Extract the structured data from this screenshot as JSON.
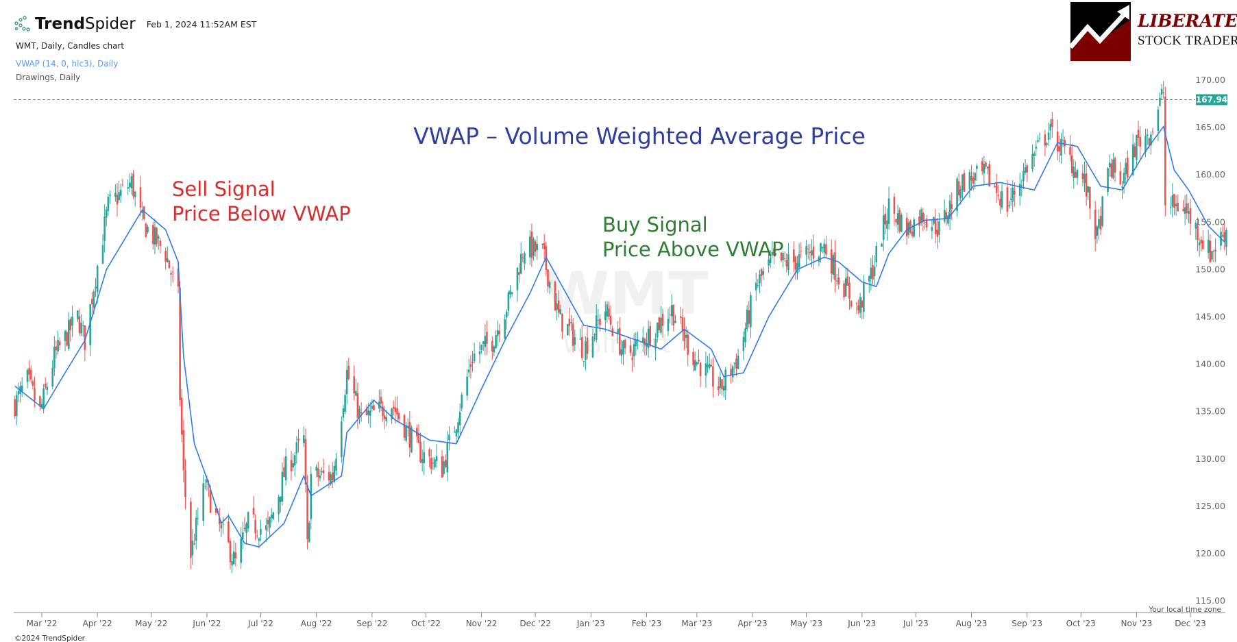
{
  "header": {
    "brand_bold": "Trend",
    "brand_light": "Spider",
    "timestamp": "Feb 1, 2024 11:52AM EST",
    "legend": [
      "WMT, Daily, Candles chart",
      "VWAP (14, 0, hlc3), Daily",
      "Drawings, Daily"
    ],
    "legend_colors": [
      "#222222",
      "#5b9bf0",
      "#555555"
    ]
  },
  "logo": {
    "line1": "LIBERATED",
    "line2": "STOCK TRADER"
  },
  "watermark": {
    "symbol": "WMT",
    "company": "Walmart"
  },
  "footer": {
    "copyright": "©2024 TrendSpider",
    "timezone_note": "Your local time zone"
  },
  "chart_data": {
    "type": "candlestick",
    "title": "VWAP – Volume Weighted Average Price",
    "annotations": [
      {
        "lines": [
          "Sell Signal",
          "Price Below VWAP"
        ],
        "color": "#d32f2f"
      },
      {
        "lines": [
          "Buy Signal",
          "Price Above VWAP"
        ],
        "color": "#2e7d32"
      }
    ],
    "last_price": "167.94",
    "last_price_value": 167.94,
    "ylim": [
      115,
      170
    ],
    "y_ticks": [
      "170.00",
      "165.00",
      "160.00",
      "155.00",
      "150.00",
      "145.00",
      "140.00",
      "135.00",
      "130.00",
      "125.00",
      "120.00",
      "115.00"
    ],
    "x_ticks": [
      {
        "date": "2022-03-01",
        "label": "Mar '22"
      },
      {
        "date": "2022-04-01",
        "label": "Apr '22"
      },
      {
        "date": "2022-05-01",
        "label": "May '22"
      },
      {
        "date": "2022-06-01",
        "label": "Jun '22"
      },
      {
        "date": "2022-07-01",
        "label": "Jul '22"
      },
      {
        "date": "2022-08-01",
        "label": "Aug '22"
      },
      {
        "date": "2022-09-01",
        "label": "Sep '22"
      },
      {
        "date": "2022-10-01",
        "label": "Oct '22"
      },
      {
        "date": "2022-11-01",
        "label": "Nov '22"
      },
      {
        "date": "2022-12-01",
        "label": "Dec '22"
      },
      {
        "date": "2023-01-01",
        "label": "Jan '23"
      },
      {
        "date": "2023-02-01",
        "label": "Feb '23"
      },
      {
        "date": "2023-03-01",
        "label": "Mar '23"
      },
      {
        "date": "2023-04-01",
        "label": "Apr '23"
      },
      {
        "date": "2023-05-01",
        "label": "May '23"
      },
      {
        "date": "2023-06-01",
        "label": "Jun '23"
      },
      {
        "date": "2023-07-01",
        "label": "Jul '23"
      },
      {
        "date": "2023-08-01",
        "label": "Aug '23"
      },
      {
        "date": "2023-09-01",
        "label": "Sep '23"
      },
      {
        "date": "2023-10-01",
        "label": "Oct '23"
      },
      {
        "date": "2023-11-01",
        "label": "Nov '23"
      },
      {
        "date": "2023-12-01",
        "label": "Dec '23"
      }
    ],
    "colors": {
      "up": "#26a69a",
      "down": "#ef5350",
      "vwap": "#2f7be8",
      "last_price_badge": "#26a69a"
    },
    "series": [
      {
        "name": "WMT",
        "kind": "close_approx",
        "points": [
          [
            "2022-02-14",
            135.8
          ],
          [
            "2022-02-21",
            138.3
          ],
          [
            "2022-02-28",
            134.9
          ],
          [
            "2022-03-08",
            140.8
          ],
          [
            "2022-03-21",
            145
          ],
          [
            "2022-03-25",
            142.5
          ],
          [
            "2022-03-30",
            148.3
          ],
          [
            "2022-04-07",
            156.7
          ],
          [
            "2022-04-20",
            159.2
          ],
          [
            "2022-04-26",
            155
          ],
          [
            "2022-05-09",
            151.7
          ],
          [
            "2022-05-16",
            147
          ],
          [
            "2022-05-17",
            136.6
          ],
          [
            "2022-05-19",
            128.2
          ],
          [
            "2022-05-23",
            119.9
          ],
          [
            "2022-05-31",
            127.4
          ],
          [
            "2022-06-07",
            123.2
          ],
          [
            "2022-06-17",
            119
          ],
          [
            "2022-06-24",
            123.2
          ],
          [
            "2022-07-05",
            122.4
          ],
          [
            "2022-07-15",
            129
          ],
          [
            "2022-07-25",
            132
          ],
          [
            "2022-07-27",
            120.7
          ],
          [
            "2022-07-29",
            128.2
          ],
          [
            "2022-08-10",
            128.2
          ],
          [
            "2022-08-18",
            139.1
          ],
          [
            "2022-08-26",
            134.1
          ],
          [
            "2022-09-12",
            135.8
          ],
          [
            "2022-09-27",
            130.8
          ],
          [
            "2022-10-10",
            129
          ],
          [
            "2022-10-18",
            134.1
          ],
          [
            "2022-10-27",
            140.8
          ],
          [
            "2022-11-07",
            142.5
          ],
          [
            "2022-11-16",
            146.6
          ],
          [
            "2022-11-25",
            152.5
          ],
          [
            "2022-12-05",
            151.7
          ],
          [
            "2022-12-14",
            145
          ],
          [
            "2022-12-28",
            141.6
          ],
          [
            "2023-01-09",
            145.8
          ],
          [
            "2023-01-20",
            140.8
          ],
          [
            "2023-02-03",
            143.3
          ],
          [
            "2023-02-15",
            145.8
          ],
          [
            "2023-02-27",
            140.8
          ],
          [
            "2023-03-14",
            137.4
          ],
          [
            "2023-03-24",
            140.8
          ],
          [
            "2023-04-03",
            148.3
          ],
          [
            "2023-04-12",
            150.8
          ],
          [
            "2023-04-24",
            150.8
          ],
          [
            "2023-05-11",
            152.5
          ],
          [
            "2023-05-19",
            149.2
          ],
          [
            "2023-05-30",
            145.8
          ],
          [
            "2023-06-07",
            150
          ],
          [
            "2023-06-16",
            156.7
          ],
          [
            "2023-06-26",
            154.2
          ],
          [
            "2023-07-05",
            155.9
          ],
          [
            "2023-07-14",
            154.2
          ],
          [
            "2023-07-26",
            159.2
          ],
          [
            "2023-08-09",
            160
          ],
          [
            "2023-08-21",
            156.7
          ],
          [
            "2023-09-01",
            160.9
          ],
          [
            "2023-09-13",
            164.6
          ],
          [
            "2023-09-22",
            162.5
          ],
          [
            "2023-10-03",
            159.2
          ],
          [
            "2023-10-10",
            153.3
          ],
          [
            "2023-10-17",
            160.9
          ],
          [
            "2023-10-24",
            159.2
          ],
          [
            "2023-11-01",
            163.4
          ],
          [
            "2023-11-09",
            164.6
          ],
          [
            "2023-11-16",
            168.8
          ],
          [
            "2023-11-17",
            156.7
          ],
          [
            "2023-11-27",
            156.7
          ],
          [
            "2023-12-12",
            151.7
          ],
          [
            "2023-12-21",
            154.2
          ]
        ]
      },
      {
        "name": "VWAP (14, 0, hlc3)",
        "kind": "line",
        "points": [
          [
            "2022-02-14",
            137.7
          ],
          [
            "2022-03-02",
            135.3
          ],
          [
            "2022-03-14",
            139.1
          ],
          [
            "2022-03-25",
            142.5
          ],
          [
            "2022-04-06",
            150
          ],
          [
            "2022-04-26",
            156.3
          ],
          [
            "2022-05-09",
            154.2
          ],
          [
            "2022-05-16",
            150.8
          ],
          [
            "2022-05-19",
            140.8
          ],
          [
            "2022-05-25",
            131.6
          ],
          [
            "2022-06-02",
            127.4
          ],
          [
            "2022-06-09",
            123.2
          ],
          [
            "2022-06-13",
            124
          ],
          [
            "2022-06-22",
            121.1
          ],
          [
            "2022-06-30",
            120.7
          ],
          [
            "2022-07-14",
            123.2
          ],
          [
            "2022-07-25",
            128.2
          ],
          [
            "2022-07-29",
            126.1
          ],
          [
            "2022-08-15",
            128.2
          ],
          [
            "2022-08-18",
            132.8
          ],
          [
            "2022-09-02",
            136.2
          ],
          [
            "2022-09-14",
            134.1
          ],
          [
            "2022-10-03",
            132
          ],
          [
            "2022-10-18",
            131.6
          ],
          [
            "2022-11-01",
            137.4
          ],
          [
            "2022-11-14",
            142.5
          ],
          [
            "2022-11-28",
            147.5
          ],
          [
            "2022-12-07",
            151.3
          ],
          [
            "2022-12-28",
            144.1
          ],
          [
            "2023-01-09",
            143.7
          ],
          [
            "2023-01-27",
            142.5
          ],
          [
            "2023-02-09",
            141.6
          ],
          [
            "2023-02-22",
            143.7
          ],
          [
            "2023-03-09",
            141.6
          ],
          [
            "2023-03-16",
            138.7
          ],
          [
            "2023-03-27",
            139.1
          ],
          [
            "2023-04-10",
            145
          ],
          [
            "2023-04-26",
            150
          ],
          [
            "2023-05-11",
            151.3
          ],
          [
            "2023-05-19",
            150.8
          ],
          [
            "2023-06-01",
            148.7
          ],
          [
            "2023-06-09",
            148.2
          ],
          [
            "2023-06-16",
            151.7
          ],
          [
            "2023-06-26",
            154.2
          ],
          [
            "2023-07-06",
            155.2
          ],
          [
            "2023-07-19",
            155.4
          ],
          [
            "2023-08-02",
            158.8
          ],
          [
            "2023-08-17",
            159.2
          ],
          [
            "2023-09-05",
            158.4
          ],
          [
            "2023-09-18",
            163.4
          ],
          [
            "2023-09-29",
            163
          ],
          [
            "2023-10-12",
            158.8
          ],
          [
            "2023-10-24",
            158.4
          ],
          [
            "2023-11-06",
            162.5
          ],
          [
            "2023-11-16",
            165.1
          ],
          [
            "2023-11-22",
            160.5
          ],
          [
            "2023-11-30",
            158.4
          ],
          [
            "2023-12-11",
            154.6
          ],
          [
            "2023-12-20",
            152.9
          ]
        ]
      }
    ]
  }
}
